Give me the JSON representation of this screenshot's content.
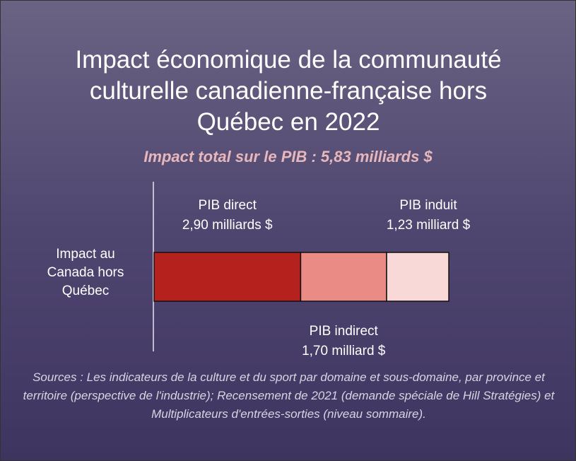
{
  "chart_data": {
    "type": "stacked-bar-horizontal",
    "title": "Impact économique de la communauté culturelle canadienne-française hors Québec en 2022",
    "subtitle": "Impact total sur le PIB : 5,83 milliards $",
    "categories": [
      "Impact au Canada hors Québec"
    ],
    "series": [
      {
        "name": "PIB direct",
        "color": "#b5221e",
        "values": [
          2.9
        ],
        "value_labels": [
          "2,90 milliards $"
        ]
      },
      {
        "name": "PIB indirect",
        "color": "#eb8b86",
        "values": [
          1.7
        ],
        "value_labels": [
          "1,70 milliard $"
        ]
      },
      {
        "name": "PIB induit",
        "color": "#f9d9d7",
        "values": [
          1.23
        ],
        "value_labels": [
          "1,23 milliard $"
        ]
      }
    ],
    "source": "Sources : Les indicateurs de la culture et du sport par domaine et sous-domaine, par province et territoire (perspective de l'industrie); Recensement de 2021 (demande spéciale de Hill Stratégies) et Multiplicateurs d'entrées-sorties (niveau sommaire)."
  }
}
